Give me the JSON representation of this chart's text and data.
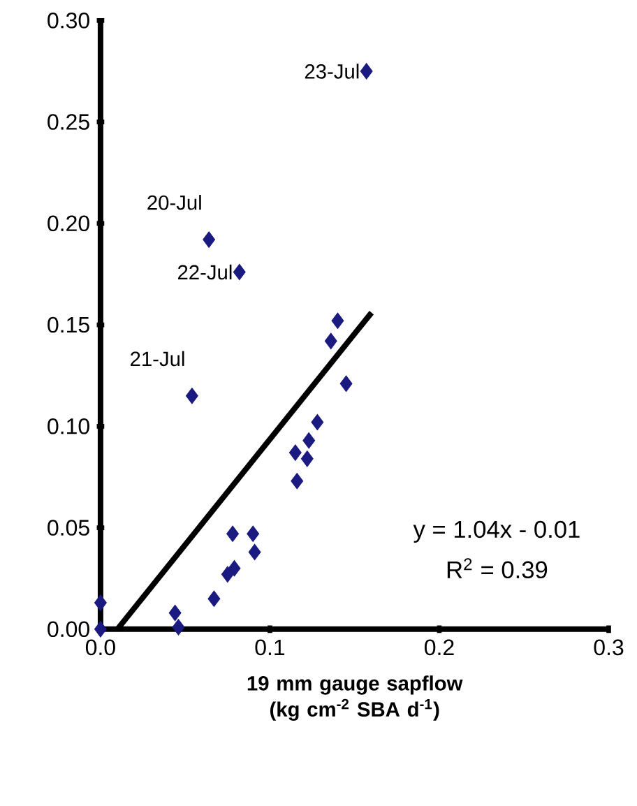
{
  "chart_data": {
    "type": "scatter",
    "xlabel": "19 mm gauge sapflow (kg cm$^{-2}$ SBA d$^{-1}$)",
    "marker": "diamond",
    "grid": false,
    "xlim": [
      0,
      0.3
    ],
    "ylim": [
      0,
      0.3
    ],
    "xticks": [
      {
        "value": 0,
        "label": "0.0"
      },
      0.1,
      0.2,
      0.3
    ],
    "yticks": [
      {
        "value": 0,
        "label": "0.00"
      },
      0.05,
      {
        "value": 0.1,
        "label": "0.10"
      },
      0.15,
      {
        "value": 0.2,
        "label": "0.20"
      },
      0.25,
      {
        "value": 0.3,
        "label": "0.30"
      }
    ],
    "series": [
      {
        "color": "#1a1a80",
        "x": [
          0.064,
          0.082,
          0.054,
          0.157,
          0.14,
          0.136,
          0.145,
          0.128,
          0.123,
          0.115,
          0.122,
          0.116,
          0.078,
          0.09,
          0.091,
          0.079,
          0.075,
          0.067,
          0.044,
          0.046,
          0.0,
          0.0
        ],
        "values": [
          0.192,
          0.176,
          0.115,
          0.275,
          0.152,
          0.142,
          0.121,
          0.102,
          0.093,
          0.087,
          0.084,
          0.073,
          0.047,
          0.047,
          0.038,
          0.03,
          0.027,
          0.015,
          0.008,
          0.001,
          0.013,
          0.0
        ]
      },
      {
        "type": "line",
        "color": "#000000",
        "marker": "none",
        "x": [
          0.01,
          0.16
        ],
        "values": [
          0.0,
          0.156
        ]
      }
    ],
    "annotations": [
      {
        "text": "20-Jul",
        "x": 0.064,
        "y": 0.192
      },
      {
        "text": "22-Jul",
        "x": 0.082,
        "y": 0.176
      },
      {
        "text": "21-Jul",
        "x": 0.054,
        "y": 0.115
      },
      {
        "text": "23-Jul",
        "x": 0.157,
        "y": 0.275
      },
      "y = 1.04x - 0.01",
      "R$^{2}$ = 0.39"
    ]
  }
}
